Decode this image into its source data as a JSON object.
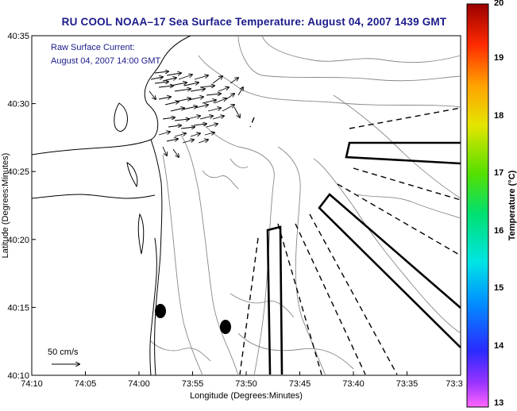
{
  "title": "RU COOL  NOAA–17  Sea Surface Temperature:  August 04, 2007 1439 GMT",
  "annotation": {
    "line1": "Raw Surface Current:",
    "line2": "August 04, 2007 14:00 GMT"
  },
  "axes": {
    "xlabel": "Longitude (Degrees:Minutes)",
    "ylabel": "Latitude (Degrees:Minutes)",
    "xticks": [
      "74:10",
      "74:05",
      "74:00",
      "73:55",
      "73:50",
      "73:45",
      "73:40",
      "73:35",
      "73:3"
    ],
    "yticks": [
      "40:35",
      "40:30",
      "40:25",
      "40:20",
      "40:15",
      "40:10"
    ]
  },
  "scale_bar": {
    "label": "50 cm/s"
  },
  "colorbar": {
    "label": "Temperature (°C)",
    "ticks": [
      "20",
      "19",
      "18",
      "17",
      "16",
      "15",
      "14",
      "13"
    ]
  }
}
